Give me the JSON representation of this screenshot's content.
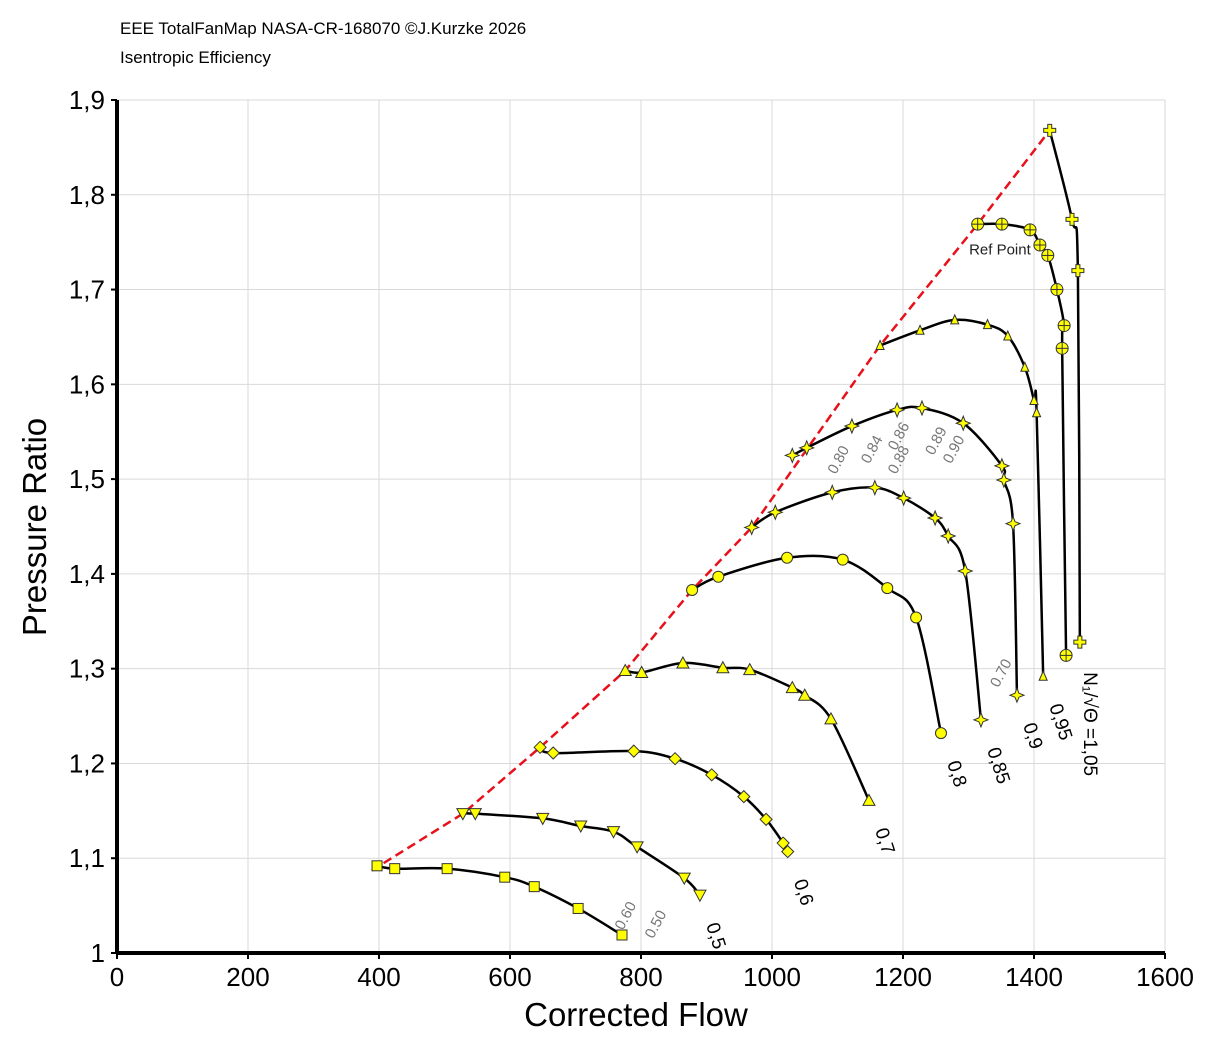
{
  "chart_data": {
    "type": "line",
    "title": "EEE TotalFanMap NASA-CR-168070 ©J.Kurzke 2026",
    "subtitle": "Isentropic Efficiency",
    "x_label": "Corrected Flow",
    "y_label": "Pressure Ratio",
    "xlim": [
      0,
      1600
    ],
    "ylim": [
      1,
      1.9
    ],
    "xticks": [
      0,
      200,
      400,
      600,
      800,
      1000,
      1200,
      1400,
      1600
    ],
    "yticks": [
      1,
      {
        "value": 1.1,
        "label": "1,1"
      },
      {
        "value": 1.2,
        "label": "1,2"
      },
      {
        "value": 1.3,
        "label": "1,3"
      },
      {
        "value": 1.4,
        "label": "1,4"
      },
      {
        "value": 1.5,
        "label": "1,5"
      },
      {
        "value": 1.6,
        "label": "1,6"
      },
      {
        "value": 1.7,
        "label": "1,7"
      },
      {
        "value": 1.8,
        "label": "1,8"
      },
      {
        "value": 1.9,
        "label": "1,9"
      }
    ],
    "grid": true,
    "series": [
      {
        "color": "#000000",
        "marker": "square",
        "x": [
          397,
          424,
          504,
          592,
          637,
          704,
          771
        ],
        "values": [
          1.092,
          1.089,
          1.089,
          1.08,
          1.07,
          1.047,
          1.019
        ]
      },
      {
        "name": "0,5",
        "color": "#000000",
        "marker": "triangle-down",
        "x": [
          528,
          547,
          650,
          708,
          758,
          794,
          866,
          890
        ],
        "values": [
          1.147,
          1.147,
          1.142,
          1.134,
          1.128,
          1.112,
          1.079,
          1.061
        ]
      },
      {
        "name": "0,6",
        "color": "#000000",
        "marker": "diamond",
        "x": [
          646,
          666,
          789,
          852,
          908,
          957,
          991,
          1017,
          1024
        ],
        "values": [
          1.217,
          1.211,
          1.213,
          1.205,
          1.188,
          1.165,
          1.141,
          1.116,
          1.107
        ]
      },
      {
        "name": "0,7",
        "color": "#000000",
        "marker": "triangle-up",
        "x": [
          776,
          801,
          864,
          925,
          966,
          1031,
          1050,
          1090,
          1148
        ],
        "values": [
          1.298,
          1.296,
          1.306,
          1.301,
          1.299,
          1.28,
          1.272,
          1.247,
          1.161
        ]
      },
      {
        "name": "0,8",
        "color": "#000000",
        "marker": "circle",
        "x": [
          878,
          918,
          1023,
          1108,
          1176,
          1220,
          1258
        ],
        "values": [
          1.383,
          1.397,
          1.417,
          1.415,
          1.385,
          1.354,
          1.232
        ]
      },
      {
        "name": "0,85",
        "color": "#000000",
        "marker": "star",
        "x": [
          969,
          1005,
          1092,
          1157,
          1201,
          1249,
          1269,
          1295,
          1319
        ],
        "values": [
          1.449,
          1.465,
          1.486,
          1.491,
          1.48,
          1.459,
          1.44,
          1.403,
          1.246
        ]
      },
      {
        "name": "0,9",
        "color": "#000000",
        "marker": "star",
        "x": [
          1031,
          1053,
          1122,
          1191,
          1229,
          1292,
          1351,
          1354,
          1368,
          1374
        ],
        "values": [
          1.525,
          1.533,
          1.556,
          1.573,
          1.575,
          1.559,
          1.514,
          1.499,
          1.453,
          1.272
        ]
      },
      {
        "name": "0,95",
        "color": "#000000",
        "marker": "triangle-small",
        "x": [
          1165,
          1226,
          1279,
          1329,
          1360,
          1386,
          1400,
          1404,
          1414
        ],
        "values": [
          1.641,
          1.657,
          1.668,
          1.663,
          1.651,
          1.618,
          1.583,
          1.57,
          1.292
        ]
      },
      {
        "color": "#000000",
        "marker": "crosshair",
        "x": [
          1314,
          1351,
          1394,
          1409,
          1421,
          1435,
          1446,
          1443,
          1449
        ],
        "values": [
          1.769,
          1.769,
          1.763,
          1.747,
          1.736,
          1.7,
          1.662,
          1.638,
          1.314
        ]
      },
      {
        "name": "N₁/√Θ =1,05",
        "color": "#000000",
        "marker": "plus",
        "x": [
          1424,
          1458,
          1467,
          1470
        ],
        "values": [
          1.868,
          1.774,
          1.72,
          1.328
        ]
      }
    ],
    "surge_line": {
      "color": "#e8101a",
      "x": [
        389,
        528,
        646,
        776,
        878,
        969,
        1165,
        1314,
        1424
      ],
      "values": [
        1.087,
        1.147,
        1.217,
        1.298,
        1.383,
        1.449,
        1.641,
        1.769,
        1.868
      ]
    },
    "marker_color": "#ffff00",
    "annotations": [
      {
        "text": "Ref Point",
        "x": 1348,
        "y": 1.737
      },
      {
        "text": "0.60",
        "x": 783,
        "y": 1.037
      },
      {
        "text": "0.50",
        "x": 829,
        "y": 1.028
      },
      {
        "text": "0.70",
        "x": 1356,
        "y": 1.293
      },
      {
        "text": "0.80",
        "x": 1108,
        "y": 1.518
      },
      {
        "text": "0.84",
        "x": 1159,
        "y": 1.529
      },
      {
        "text": "0.86",
        "x": 1200,
        "y": 1.543
      },
      {
        "text": "0.88",
        "x": 1200,
        "y": 1.518
      },
      {
        "text": "0.89",
        "x": 1257,
        "y": 1.538
      },
      {
        "text": "0.90",
        "x": 1284,
        "y": 1.529
      }
    ]
  }
}
